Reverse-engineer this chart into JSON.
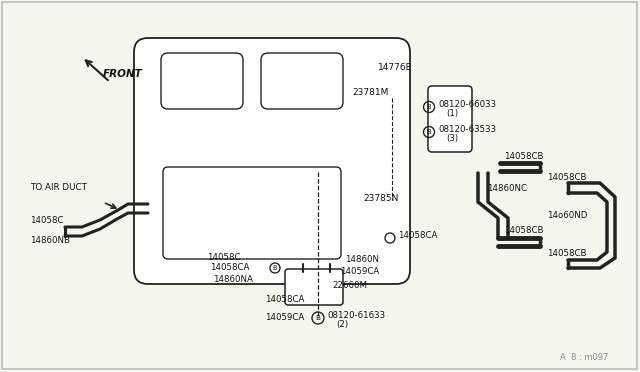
{
  "bg_color": "#f5f5f0",
  "line_color": "#222222",
  "text_color": "#111111",
  "watermark": "A  8 : m097",
  "labels": {
    "front": "FRONT",
    "to_air_duct": "TO AIR DUCT",
    "14776E": "14776E",
    "23781M": "23781M",
    "23785N": "23785N",
    "08120_66033": "08120-66033",
    "circle1": "(1)",
    "08120_63533": "08120-63533",
    "circle3": "(3)",
    "14058CB_1": "14058CB",
    "14860NC": "14860NC",
    "14058CB_2": "14058CB",
    "14058CB_3": "14058CB",
    "14860ND": "14o60ND",
    "14058CB_4": "14058CB",
    "14058C_left": "14058C",
    "14860NB": "14860NB",
    "14058C_mid": "14058C",
    "14058CA_1": "14058CA",
    "14860NA": "14860NA",
    "14058CA_2": "14059CA",
    "14058CA_3": "14059CA",
    "14058CA_bot": "14058CA",
    "14860N": "14860N",
    "22660M": "22660M",
    "08120_61633": "08120-61633",
    "circle2": "(2)"
  }
}
